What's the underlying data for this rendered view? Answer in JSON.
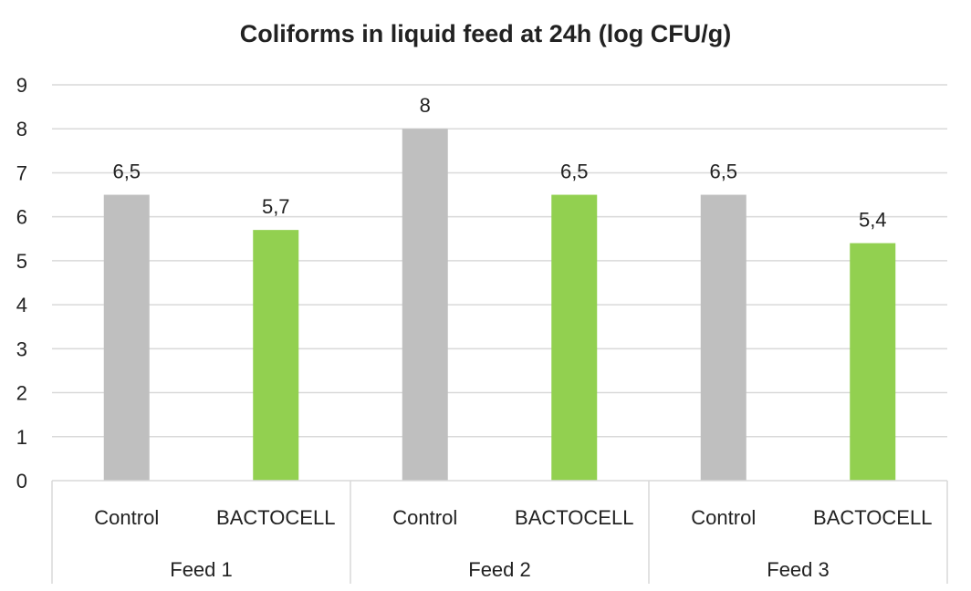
{
  "chart_data": {
    "type": "bar",
    "title": "Coliforms in liquid feed at 24h (log CFU/g)",
    "xlabel": "",
    "ylabel": "",
    "ylim": [
      0,
      9
    ],
    "yticks": [
      "0",
      "1",
      "2",
      "3",
      "4",
      "5",
      "6",
      "7",
      "8",
      "9"
    ],
    "grid": true,
    "groups": [
      {
        "label": "Feed 1",
        "bars": [
          {
            "category": "Control",
            "value": 6.5,
            "label": "6,5",
            "color": "#bfbfbf"
          },
          {
            "category": "BACTOCELL",
            "value": 5.7,
            "label": "5,7",
            "color": "#92d050"
          }
        ]
      },
      {
        "label": "Feed 2",
        "bars": [
          {
            "category": "Control",
            "value": 8,
            "label": "8",
            "color": "#bfbfbf"
          },
          {
            "category": "BACTOCELL",
            "value": 6.5,
            "label": "6,5",
            "color": "#92d050"
          }
        ]
      },
      {
        "label": "Feed 3",
        "bars": [
          {
            "category": "Control",
            "value": 6.5,
            "label": "6,5",
            "color": "#bfbfbf"
          },
          {
            "category": "BACTOCELL",
            "value": 5.4,
            "label": "5,4",
            "color": "#92d050"
          }
        ]
      }
    ]
  }
}
